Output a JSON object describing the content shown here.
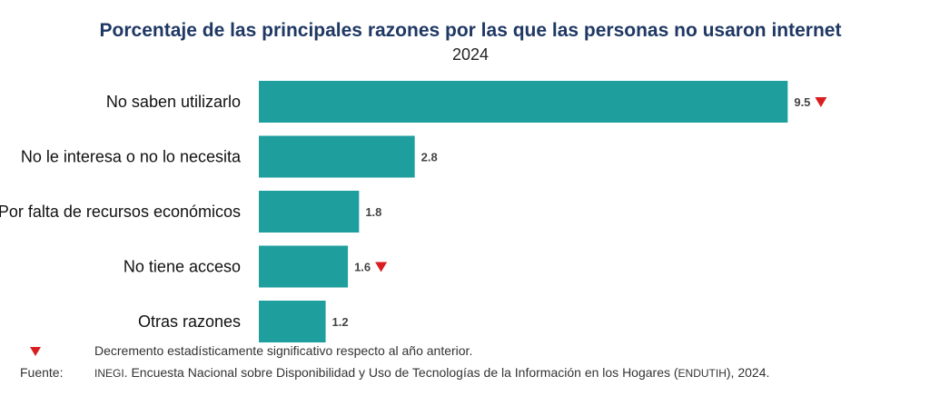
{
  "chart_data": {
    "type": "bar",
    "orientation": "horizontal",
    "title": "Porcentaje de las principales razones por las que las personas no usaron internet",
    "subtitle": "2024",
    "categories": [
      "No saben utilizarlo",
      "No le interesa o no lo necesita",
      "Por falta de recursos económicos",
      "No tiene acceso",
      "Otras razones"
    ],
    "values": [
      9.5,
      2.8,
      1.8,
      1.6,
      1.2
    ],
    "value_labels": [
      "9.5",
      "2.8",
      "1.8",
      "1.6",
      "1.2"
    ],
    "significant_decrease": [
      true,
      false,
      false,
      true,
      false
    ],
    "xlim": [
      0,
      10
    ],
    "bar_color": "#1f9e9e",
    "marker_color": "#d81e1e",
    "xlabel": "",
    "ylabel": ""
  },
  "footnote": {
    "legend_text": "Decremento estadísticamente significativo respecto al año anterior.",
    "source_key": "Fuente:",
    "source_org": "INEGI",
    "source_text_1": ". Encuesta Nacional sobre Disponibilidad y Uso de Tecnologías de la Información en los Hogares (",
    "source_abbrev": "ENDUTIH",
    "source_text_2": "), 2024."
  }
}
